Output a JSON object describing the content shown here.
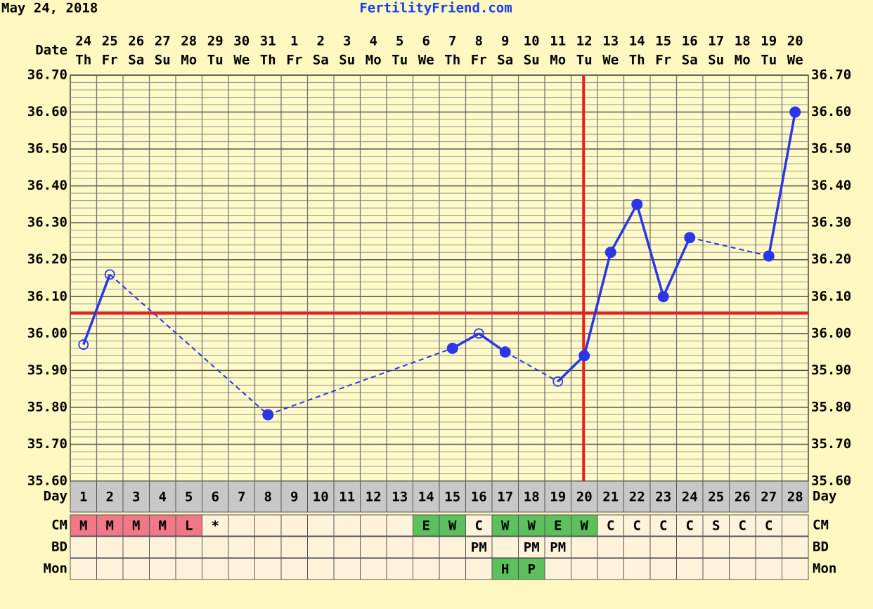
{
  "chart_data": {
    "type": "line",
    "header_date": "May 24, 2018",
    "site": "FertilityFriend.com",
    "date_label": "Date",
    "dates": [
      24,
      25,
      26,
      27,
      28,
      29,
      30,
      31,
      1,
      2,
      3,
      4,
      5,
      6,
      7,
      8,
      9,
      10,
      11,
      12,
      13,
      14,
      15,
      16,
      17,
      18,
      19,
      20
    ],
    "weekdays": [
      "Th",
      "Fr",
      "Sa",
      "Su",
      "Mo",
      "Tu",
      "We",
      "Th",
      "Fr",
      "Sa",
      "Su",
      "Mo",
      "Tu",
      "We",
      "Th",
      "Fr",
      "Sa",
      "Su",
      "Mo",
      "Tu",
      "We",
      "Th",
      "Fr",
      "Sa",
      "Su",
      "Mo",
      "Tu",
      "We"
    ],
    "series": [
      {
        "color": "#2a36e8",
        "values": [
          35.97,
          36.16,
          null,
          null,
          null,
          null,
          null,
          35.78,
          null,
          null,
          null,
          null,
          null,
          null,
          35.96,
          36.0,
          35.95,
          null,
          35.87,
          35.94,
          36.22,
          36.35,
          36.1,
          36.26,
          null,
          null,
          36.21,
          36.6
        ],
        "markers": [
          "open",
          "open",
          null,
          null,
          null,
          null,
          null,
          "filled",
          null,
          null,
          null,
          null,
          null,
          null,
          "filled",
          "open",
          "filled",
          null,
          "open",
          "filled",
          "filled",
          "filled",
          "filled",
          "filled",
          null,
          null,
          "filled",
          "filled"
        ]
      }
    ],
    "ylim": [
      35.6,
      36.7
    ],
    "yticks": [
      {
        "value": 35.6,
        "label": "35.60"
      },
      {
        "value": 35.7,
        "label": "35.70"
      },
      {
        "value": 35.8,
        "label": "35.80"
      },
      {
        "value": 35.9,
        "label": "35.90"
      },
      {
        "value": 36.0,
        "label": "36.00"
      },
      {
        "value": 36.1,
        "label": "36.10"
      },
      {
        "value": 36.2,
        "label": "36.20"
      },
      {
        "value": 36.3,
        "label": "36.30"
      },
      {
        "value": 36.4,
        "label": "36.40"
      },
      {
        "value": 36.5,
        "label": "36.50"
      },
      {
        "value": 36.6,
        "label": "36.60"
      },
      {
        "value": 36.7,
        "label": "36.70"
      }
    ],
    "grid": true,
    "minor_grid_step": 0.02,
    "coverline": 36.055,
    "ovulation_day": 20,
    "marker_line_color": "#e82020",
    "rows": {
      "day_label": "Day",
      "days": [
        1,
        2,
        3,
        4,
        5,
        6,
        7,
        8,
        9,
        10,
        11,
        12,
        13,
        14,
        15,
        16,
        17,
        18,
        19,
        20,
        21,
        22,
        23,
        24,
        25,
        26,
        27,
        28
      ],
      "cm_label": "CM",
      "cm": [
        "M",
        "M",
        "M",
        "M",
        "L",
        "*",
        null,
        null,
        null,
        null,
        null,
        null,
        null,
        "E",
        "W",
        "C",
        "W",
        "W",
        "E",
        "W",
        "C",
        "C",
        "C",
        "C",
        "S",
        "C",
        "C",
        null
      ],
      "bd_label": "BD",
      "bd": [
        null,
        null,
        null,
        null,
        null,
        null,
        null,
        null,
        null,
        null,
        null,
        null,
        null,
        null,
        null,
        "PM",
        null,
        "PM",
        "PM",
        null,
        null,
        null,
        null,
        null,
        null,
        null,
        null,
        null
      ],
      "mon_label": "Mon",
      "mon": [
        null,
        null,
        null,
        null,
        null,
        null,
        null,
        null,
        null,
        null,
        null,
        null,
        null,
        null,
        null,
        null,
        "H",
        "P",
        null,
        null,
        null,
        null,
        null,
        null,
        null,
        null,
        null,
        null
      ],
      "cell_colors": {
        "M": "#f07888",
        "L": "#f07888",
        "E": "#5cc05c",
        "W": "#5cc05c",
        "H": "#5cc05c",
        "P": "#5cc05c"
      }
    }
  }
}
